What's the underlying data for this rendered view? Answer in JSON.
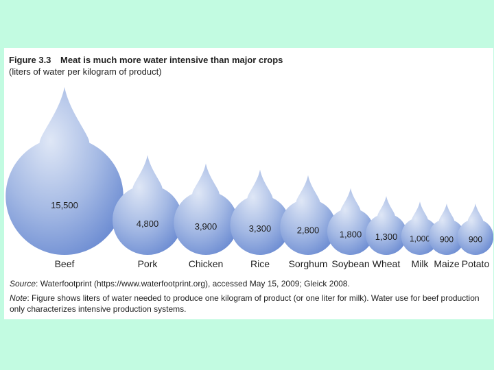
{
  "figure": {
    "number": "Figure 3.3",
    "title": "Meat is much more water intensive than major crops",
    "subtitle": "(liters of water per kilogram of product)",
    "source_label": "Source",
    "source_text": ": Waterfootprint (https://www.waterfootprint.org), accessed May 15, 2009; Gleick 2008.",
    "note_label": "Note",
    "note_text_1": ": Figure shows liters of water needed to produce one kilogram of product (or one liter for milk). Water use for beef production",
    "note_text_2": "only characterizes intensive production systems."
  },
  "colors": {
    "drop_top": "#dfe7f6",
    "drop_mid": "#a4b9e4",
    "drop_bottom": "#5c7fcd",
    "background": "#c2fbe1"
  },
  "chart_data": {
    "type": "bar",
    "mark": "water-drop",
    "unit": "liters of water per kilogram of product",
    "categories": [
      "Beef",
      "Pork",
      "Chicken",
      "Rice",
      "Sorghum",
      "Soybean",
      "Wheat",
      "Milk",
      "Maize",
      "Potato"
    ],
    "values": [
      15500,
      4800,
      3900,
      3300,
      2800,
      1800,
      1300,
      1000,
      900,
      900
    ],
    "value_labels": [
      "15,500",
      "4,800",
      "3,900",
      "3,300",
      "2,800",
      "1,800",
      "1,300",
      "1,000",
      "900",
      "900"
    ],
    "title": "Meat is much more water intensive than major crops",
    "subtitle": "(liters of water per kilogram of product)",
    "xlabel": "",
    "ylabel": ""
  }
}
